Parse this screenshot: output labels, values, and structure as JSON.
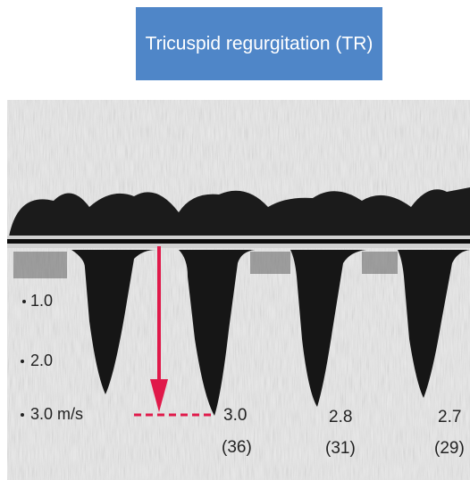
{
  "title": "Tricuspid regurgitation (TR)",
  "scale_labels": [
    "1.0",
    "2.0",
    "3.0 m/s"
  ],
  "measurements": [
    {
      "velocity": "3.0",
      "gradient": "(36)"
    },
    {
      "velocity": "2.8",
      "gradient": "(31)"
    },
    {
      "velocity": "2.7",
      "gradient": "(29)"
    }
  ]
}
